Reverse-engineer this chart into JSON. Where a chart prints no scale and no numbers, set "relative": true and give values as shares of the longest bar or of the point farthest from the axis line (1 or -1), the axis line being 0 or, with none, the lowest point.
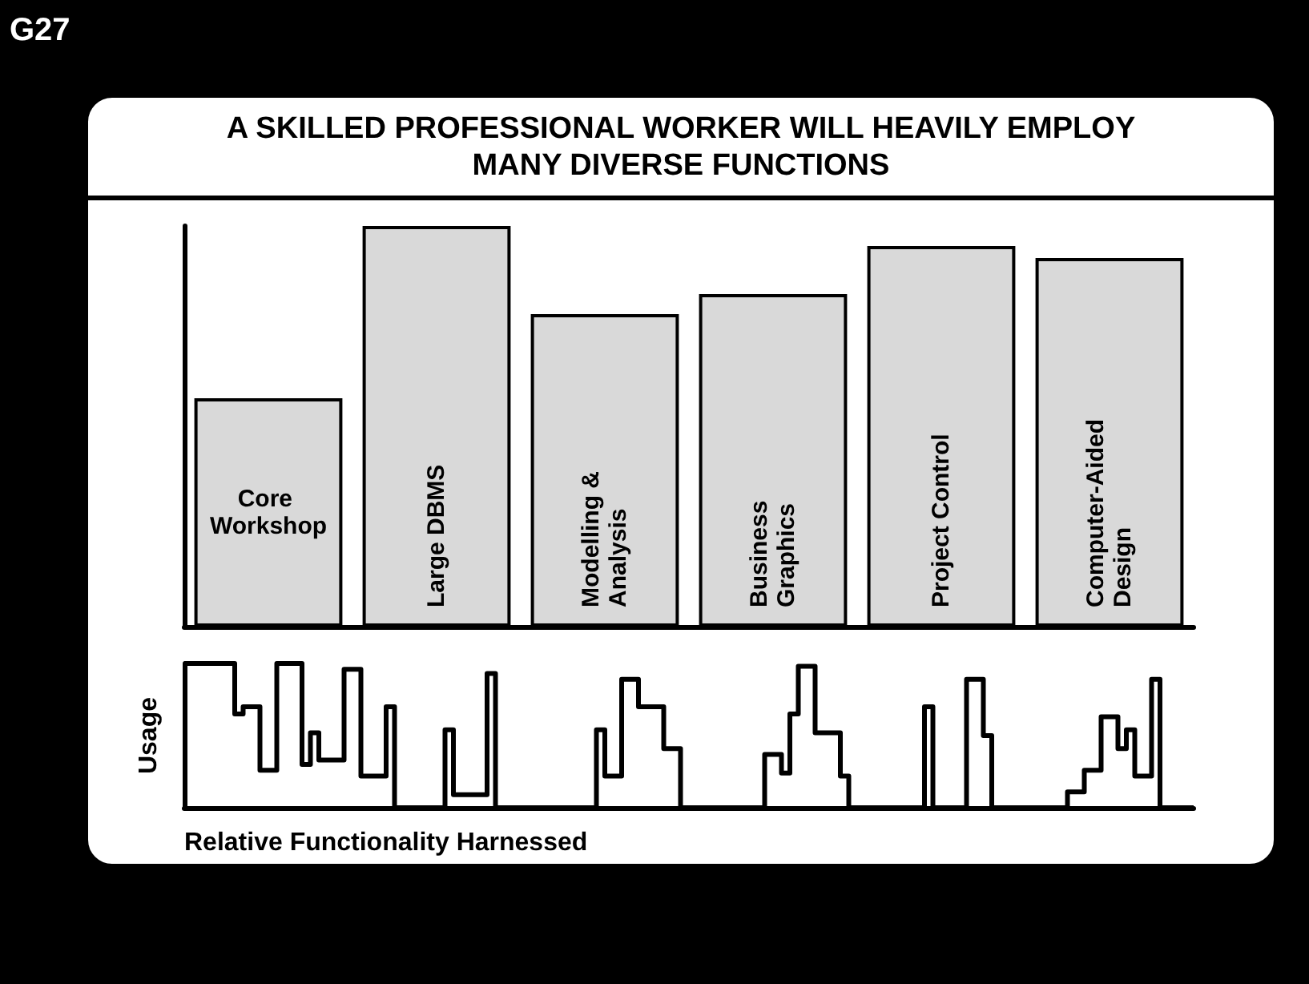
{
  "chart_data": [
    {
      "type": "bar",
      "title": "A SKILLED PROFESSIONAL WORKER WILL HEAVILY EMPLOY MANY DIVERSE FUNCTIONS",
      "annotations": [
        "G27"
      ],
      "categories": [
        "Core Workshop",
        "Large DBMS",
        "Modelling & Analysis",
        "Business Graphics",
        "Project Control",
        "Computer-Aided Design"
      ],
      "values": [
        0.57,
        1,
        0.78,
        0.83,
        0.95,
        0.92
      ],
      "color": "#d9d9d9",
      "relative": true
    },
    {
      "type": "step",
      "ylabel": "Usage",
      "xlabel": "Relative Functionality Harnessed",
      "relative": true,
      "line_style": "solid",
      "color": "#000000",
      "categories": [
        null,
        null,
        null,
        null,
        null,
        null,
        null,
        null,
        null,
        null,
        null,
        null,
        null,
        null,
        null,
        null,
        null,
        null,
        null,
        null,
        null,
        null,
        null,
        null,
        null,
        null,
        null,
        null,
        null,
        null,
        null,
        null,
        null,
        null,
        null,
        null,
        null,
        null,
        null,
        null,
        null,
        null,
        null,
        null,
        null,
        null,
        null,
        null,
        null,
        null,
        null,
        null,
        null,
        null,
        null,
        null,
        null,
        null,
        null,
        null,
        null,
        null,
        null,
        null,
        null,
        null,
        null,
        null,
        null,
        null,
        null,
        null,
        null,
        null,
        null,
        null,
        null,
        null,
        null,
        null,
        null,
        null,
        null,
        null,
        null,
        null,
        null,
        null,
        null,
        null,
        null,
        null,
        null,
        null,
        null,
        null,
        null,
        null,
        null,
        null,
        null,
        null,
        null,
        null,
        null,
        null,
        null,
        null,
        null,
        null,
        null,
        null,
        null,
        null,
        null,
        null,
        null,
        null,
        null,
        null,
        null
      ],
      "values": [
        1,
        1,
        1,
        1,
        1,
        1,
        0.65,
        0.7,
        0.7,
        0.26,
        0.26,
        1,
        1,
        1,
        0.3,
        0.52,
        0.33,
        0.33,
        0.33,
        0.96,
        0.96,
        0.22,
        0.22,
        0.22,
        0.7,
        0,
        0,
        0,
        0,
        0,
        0,
        0.54,
        0.09,
        0.09,
        0.09,
        0.09,
        0.93,
        0,
        0,
        0,
        0,
        0,
        0,
        0,
        0,
        0,
        0,
        0,
        0,
        0.54,
        0.22,
        0.22,
        0.89,
        0.89,
        0.7,
        0.7,
        0.7,
        0.41,
        0.41,
        0,
        0,
        0,
        0,
        0,
        0,
        0,
        0,
        0,
        0,
        0.37,
        0.37,
        0.24,
        0.65,
        0.98,
        0.98,
        0.52,
        0.52,
        0.52,
        0.22,
        0,
        0,
        0,
        0,
        0,
        0,
        0,
        0,
        0,
        0.7,
        0,
        0,
        0,
        0,
        0.89,
        0.89,
        0.5,
        0,
        0,
        0,
        0,
        0,
        0,
        0,
        0,
        0,
        0.11,
        0.11,
        0.26,
        0.26,
        0.63,
        0.63,
        0.41,
        0.54,
        0.22,
        0.22,
        0.89,
        0,
        0,
        0,
        0,
        0
      ]
    }
  ]
}
